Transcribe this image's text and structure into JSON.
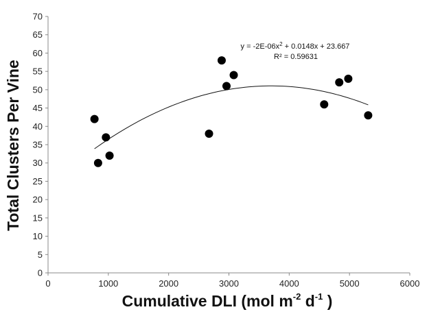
{
  "chart_data": {
    "type": "scatter",
    "title": "",
    "xlabel": {
      "main": "Cumulative DLI (mol m",
      "sup1": "-2",
      "mid": " d",
      "sup2": "-1",
      "end": " )"
    },
    "ylabel": "Total Clusters Per Vine",
    "xlim": [
      0,
      6000
    ],
    "ylim": [
      0,
      70
    ],
    "x_ticks": [
      0,
      1000,
      2000,
      3000,
      4000,
      5000,
      6000
    ],
    "y_ticks": [
      0,
      5,
      10,
      15,
      20,
      25,
      30,
      35,
      40,
      45,
      50,
      55,
      60,
      65,
      70
    ],
    "grid": false,
    "legend": "none",
    "marker_color": "#000000",
    "points": [
      {
        "x": 770,
        "y": 42
      },
      {
        "x": 830,
        "y": 30
      },
      {
        "x": 960,
        "y": 37
      },
      {
        "x": 1020,
        "y": 32
      },
      {
        "x": 2670,
        "y": 38
      },
      {
        "x": 2880,
        "y": 58
      },
      {
        "x": 2960,
        "y": 51
      },
      {
        "x": 3080,
        "y": 54
      },
      {
        "x": 4580,
        "y": 46
      },
      {
        "x": 4830,
        "y": 52
      },
      {
        "x": 4980,
        "y": 53
      },
      {
        "x": 5310,
        "y": 43
      }
    ],
    "trendline": {
      "type": "polynomial",
      "order": 2,
      "coefficients": {
        "a": -2e-06,
        "b": 0.0148,
        "c": 23.667
      },
      "x_range": [
        770,
        5310
      ],
      "equation": {
        "pre": "y = -2E-06x",
        "sup": "2",
        "post": " + 0.0148x + 23.667"
      },
      "r_squared": "R² = 0.59631"
    }
  }
}
